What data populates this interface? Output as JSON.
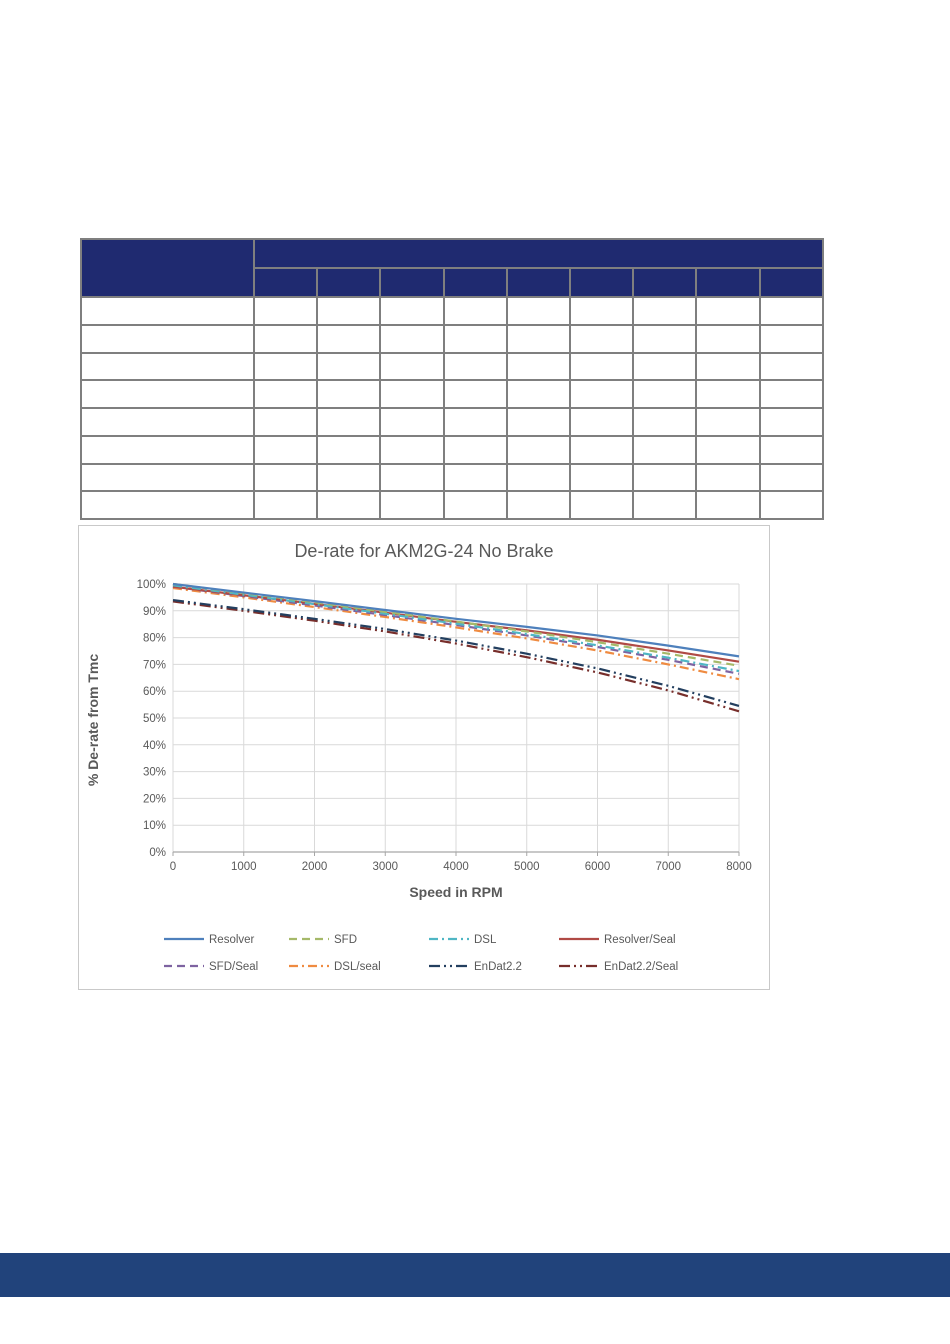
{
  "page": {
    "background": "#ffffff"
  },
  "table": {
    "header_fill": "#1f2a70",
    "border_color": "#7f7f7f",
    "corner_label": "",
    "group_header_label": "",
    "sub_columns": [
      "",
      "",
      "",
      "",
      "",
      "",
      "",
      "",
      ""
    ],
    "rows": [
      [
        "",
        "",
        "",
        "",
        "",
        "",
        "",
        "",
        "",
        ""
      ],
      [
        "",
        "",
        "",
        "",
        "",
        "",
        "",
        "",
        "",
        ""
      ],
      [
        "",
        "",
        "",
        "",
        "",
        "",
        "",
        "",
        "",
        ""
      ],
      [
        "",
        "",
        "",
        "",
        "",
        "",
        "",
        "",
        "",
        ""
      ],
      [
        "",
        "",
        "",
        "",
        "",
        "",
        "",
        "",
        "",
        ""
      ],
      [
        "",
        "",
        "",
        "",
        "",
        "",
        "",
        "",
        "",
        ""
      ],
      [
        "",
        "",
        "",
        "",
        "",
        "",
        "",
        "",
        "",
        ""
      ],
      [
        "",
        "",
        "",
        "",
        "",
        "",
        "",
        "",
        "",
        ""
      ]
    ]
  },
  "chart_data": {
    "type": "line",
    "title": "De-rate for AKM2G-24 No Brake",
    "xlabel": "Speed in RPM",
    "ylabel": "% De-rate from Tmc",
    "x": [
      0,
      1000,
      2000,
      3000,
      4000,
      5000,
      6000,
      7000,
      8000
    ],
    "x_tick_labels": [
      "0",
      "1000",
      "2000",
      "3000",
      "4000",
      "5000",
      "6000",
      "7000",
      "8000"
    ],
    "y_tick_labels": [
      "0%",
      "10%",
      "20%",
      "30%",
      "40%",
      "50%",
      "60%",
      "70%",
      "80%",
      "90%",
      "100%"
    ],
    "xlim": [
      0,
      8000
    ],
    "ylim": [
      0,
      100
    ],
    "grid": true,
    "legend_position": "bottom",
    "text_color": "#595959",
    "gridline_color": "#d9d9d9",
    "axis_color": "#a6a6a6",
    "series": [
      {
        "name": "Resolver",
        "color": "#4e80bc",
        "dash": "solid",
        "values": [
          100.0,
          96.8,
          93.6,
          90.3,
          87.0,
          84.0,
          80.8,
          77.0,
          73.0
        ]
      },
      {
        "name": "SFD",
        "color": "#a5b969",
        "dash": "dash",
        "values": [
          100.0,
          96.6,
          93.2,
          89.6,
          86.0,
          82.3,
          78.3,
          74.0,
          69.5
        ]
      },
      {
        "name": "DSL",
        "color": "#4fb6c4",
        "dash": "dash-dot",
        "values": [
          99.5,
          96.0,
          92.5,
          88.9,
          85.2,
          81.3,
          77.1,
          72.5,
          67.5
        ]
      },
      {
        "name": "Resolver/Seal",
        "color": "#b04a45",
        "dash": "solid",
        "values": [
          99.0,
          95.8,
          92.6,
          89.3,
          85.9,
          82.7,
          79.2,
          75.2,
          71.0
        ]
      },
      {
        "name": "SFD/Seal",
        "color": "#7e63a1",
        "dash": "dash",
        "values": [
          99.0,
          95.5,
          92.0,
          88.4,
          84.7,
          80.8,
          76.5,
          71.7,
          66.5
        ]
      },
      {
        "name": "DSL/seal",
        "color": "#ef8b41",
        "dash": "dash-dot",
        "values": [
          98.5,
          95.0,
          91.4,
          87.7,
          83.8,
          79.7,
          75.2,
          70.0,
          64.5
        ]
      },
      {
        "name": "EnDat2.2",
        "color": "#233f5f",
        "dash": "long-dash-dot-dot",
        "values": [
          94.0,
          90.6,
          87.0,
          83.2,
          78.9,
          74.0,
          68.5,
          62.0,
          54.5
        ]
      },
      {
        "name": "EnDat2.2/Seal",
        "color": "#772e2b",
        "dash": "long-dash-dot-dot",
        "values": [
          93.5,
          90.0,
          86.3,
          82.3,
          77.8,
          72.7,
          67.0,
          60.3,
          52.5
        ]
      }
    ]
  },
  "footer": {
    "fill": "#21437b"
  }
}
